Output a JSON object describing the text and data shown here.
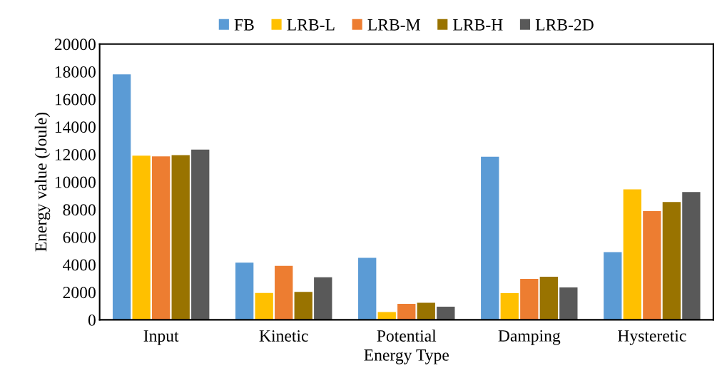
{
  "chart_data": {
    "type": "bar",
    "xlabel": "Energy Type",
    "ylabel": "Energy value (Joule)",
    "categories": [
      "Input",
      "Kinetic",
      "Potential",
      "Damping",
      "Hysteretic"
    ],
    "series": [
      {
        "name": "FB",
        "color": "#5b9bd5",
        "values": [
          17800,
          4150,
          4500,
          11830,
          4910
        ]
      },
      {
        "name": "LRB-L",
        "color": "#ffc000",
        "values": [
          11900,
          1950,
          560,
          1940,
          9460
        ]
      },
      {
        "name": "LRB-M",
        "color": "#ed7d31",
        "values": [
          11850,
          3910,
          1160,
          2970,
          7880
        ]
      },
      {
        "name": "LRB-H",
        "color": "#997300",
        "values": [
          11950,
          2020,
          1230,
          3130,
          8540
        ]
      },
      {
        "name": "LRB-2D",
        "color": "#595959",
        "values": [
          12350,
          3080,
          950,
          2350,
          9270
        ]
      }
    ],
    "ylim": [
      0,
      20000
    ],
    "yticks": [
      0,
      2000,
      4000,
      6000,
      8000,
      10000,
      12000,
      14000,
      16000,
      18000,
      20000
    ],
    "grid": false,
    "legend": "top"
  }
}
